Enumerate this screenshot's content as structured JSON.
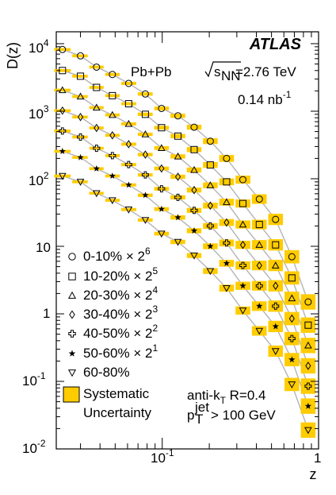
{
  "chart_data": {
    "type": "scatter",
    "title": "",
    "xlabel": "z",
    "ylabel": "D(z)",
    "xscale": "log",
    "yscale": "log",
    "xlim": [
      0.021,
      1.0
    ],
    "ylim": [
      0.01,
      15000
    ],
    "x_tick_labels": {
      "major": [
        "10",
        "1"
      ]
    },
    "y_tick_labels": [
      {
        "base": "10",
        "exp": "4"
      },
      {
        "base": "10",
        "exp": "3"
      },
      {
        "base": "10",
        "exp": "2"
      },
      {
        "base": "10",
        "exp": ""
      },
      {
        "base": "1",
        "exp": ""
      },
      {
        "base": "10",
        "exp": "-1"
      },
      {
        "base": "10",
        "exp": "-2"
      }
    ],
    "x_tick_exp": "-1",
    "experiment": "ATLAS",
    "system": "Pb+Pb",
    "energy": "=2.76 TeV",
    "luminosity": "0.14 nb",
    "lumi_exp": "-1",
    "algo": "anti-k",
    "algo_sub": "T",
    "algo_r": " R=0.4",
    "pt_cut": " > 100 GeV",
    "pt_sup": "jet",
    "pt_sub": "T",
    "systematic_label_1": "Systematic",
    "systematic_label_2": "Uncertainty",
    "band_color": "#ffcc00",
    "curve_color": "#b4b4b4",
    "marker_color": "#000000",
    "x": [
      0.023,
      0.03,
      0.038,
      0.048,
      0.061,
      0.078,
      0.099,
      0.126,
      0.16,
      0.203,
      0.258,
      0.328,
      0.418,
      0.531,
      0.675,
      0.858
    ],
    "series": [
      {
        "name": "0-10%",
        "factor": "2",
        "exp": "6",
        "marker": "circle",
        "values": [
          8200,
          6600,
          4500,
          3500,
          2580,
          1800,
          1100,
          855,
          580,
          360,
          200,
          97,
          50,
          25,
          7.0,
          1.5
        ]
      },
      {
        "name": "10-20%",
        "factor": "2",
        "exp": "5",
        "marker": "square",
        "values": [
          4000,
          3300,
          2250,
          1700,
          1290,
          900,
          570,
          428,
          270,
          160,
          90,
          43,
          21,
          10.5,
          3.4,
          0.68
        ]
      },
      {
        "name": "20-30%",
        "factor": "2",
        "exp": "4",
        "marker": "triangle-up",
        "values": [
          2050,
          1650,
          1130,
          880,
          650,
          455,
          285,
          214,
          135,
          80,
          45,
          21,
          10.5,
          5.2,
          1.7,
          0.34
        ]
      },
      {
        "name": "30-40%",
        "factor": "2",
        "exp": "3",
        "marker": "diamond",
        "values": [
          1020,
          820,
          565,
          440,
          325,
          228,
          142,
          107,
          68,
          40,
          22.5,
          10.5,
          5.2,
          2.6,
          0.85,
          0.17
        ]
      },
      {
        "name": "40-50%",
        "factor": "2",
        "exp": "2",
        "marker": "cross",
        "values": [
          510,
          415,
          283,
          220,
          162,
          114,
          71,
          53,
          34,
          20,
          11.2,
          5.2,
          2.6,
          1.3,
          0.43,
          0.085
        ]
      },
      {
        "name": "50-60%",
        "factor": "2",
        "exp": "1",
        "marker": "star",
        "values": [
          255,
          207,
          141,
          110,
          81,
          57,
          35.6,
          26.7,
          17,
          10,
          5.6,
          2.6,
          1.3,
          0.65,
          0.21,
          0.043
        ]
      },
      {
        "name": "60-80%",
        "factor": "",
        "exp": "",
        "marker": "triangle-down",
        "values": [
          110,
          90,
          61,
          48,
          35,
          24.5,
          15.4,
          11.6,
          7.3,
          4.3,
          2.4,
          1.12,
          0.56,
          0.28,
          0.09,
          0.019
        ]
      }
    ]
  }
}
